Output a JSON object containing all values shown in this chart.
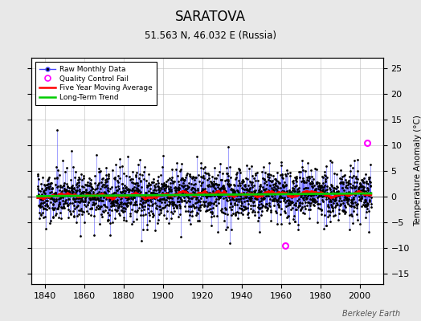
{
  "title": "SARATOVA",
  "subtitle": "51.563 N, 46.032 E (Russia)",
  "ylabel": "Temperature Anomaly (°C)",
  "xlabel_ticks": [
    1840,
    1860,
    1880,
    1900,
    1920,
    1940,
    1960,
    1980,
    2000
  ],
  "yticks": [
    -15,
    -10,
    -5,
    0,
    5,
    10,
    15,
    20,
    25
  ],
  "ylim": [
    -17,
    27
  ],
  "xlim": [
    1833,
    2012
  ],
  "x_start": 1836,
  "raw_color": "#4444ff",
  "raw_dot_color": "#000000",
  "ma_color": "#ff0000",
  "trend_color": "#00cc00",
  "qc_color": "#ff00ff",
  "background_color": "#e8e8e8",
  "plot_bg_color": "#ffffff",
  "grid_color": "#bbbbbb",
  "watermark": "Berkeley Earth",
  "legend_entries": [
    "Raw Monthly Data",
    "Quality Control Fail",
    "Five Year Moving Average",
    "Long-Term Trend"
  ],
  "seed": 42,
  "n_months": 2040,
  "qc_fail_years": [
    2004,
    1962
  ],
  "qc_fail_values": [
    10.5,
    -9.5
  ]
}
